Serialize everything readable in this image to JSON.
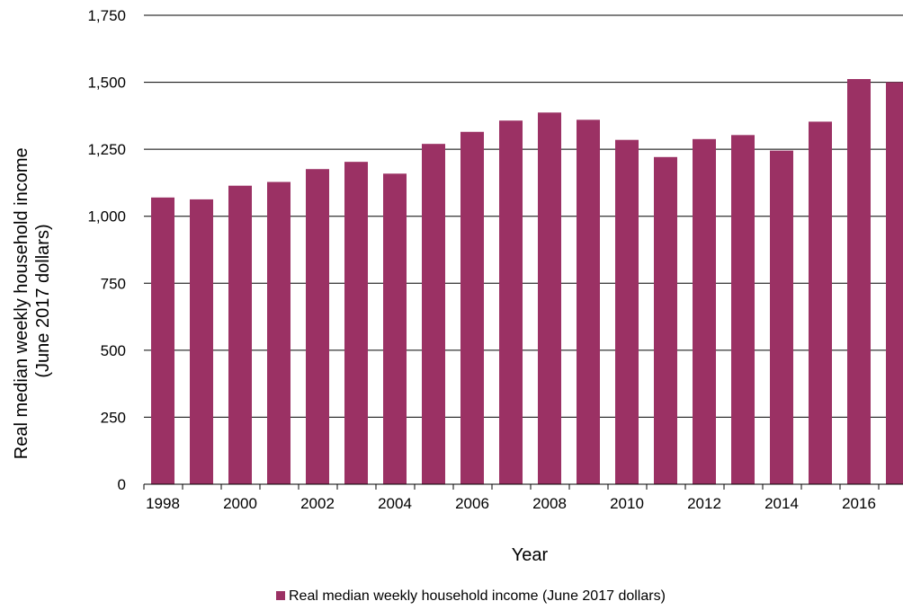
{
  "chart_data": {
    "type": "bar",
    "categories": [
      "1998",
      "1999",
      "2000",
      "2001",
      "2002",
      "2003",
      "2004",
      "2005",
      "2006",
      "2007",
      "2008",
      "2009",
      "2010",
      "2011",
      "2012",
      "2013",
      "2014",
      "2015",
      "2016",
      "2017"
    ],
    "x_tick_labels": [
      "1998",
      "2000",
      "2002",
      "2004",
      "2006",
      "2008",
      "2010",
      "2012",
      "2014",
      "2016"
    ],
    "series": [
      {
        "name": "Real median weekly household income (June 2017 dollars)",
        "color": "#9B3164",
        "values": [
          1070,
          1063,
          1114,
          1128,
          1176,
          1203,
          1159,
          1270,
          1315,
          1357,
          1387,
          1360,
          1285,
          1221,
          1288,
          1303,
          1245,
          1353,
          1512,
          1500
        ]
      }
    ],
    "ylim": [
      0,
      1750
    ],
    "y_ticks": [
      0,
      250,
      500,
      750,
      1000,
      1250,
      1500,
      1750
    ],
    "y_tick_labels": [
      "0",
      "250",
      "500",
      "750",
      "1,000",
      "1,250",
      "1,500",
      "1,750"
    ],
    "ylabel_line1": "Real median weekly household income",
    "ylabel_line2": "(June 2017 dollars)",
    "xlabel": "Year",
    "grid": true,
    "legend_position": "bottom-center",
    "gridline_color": "#000000"
  }
}
